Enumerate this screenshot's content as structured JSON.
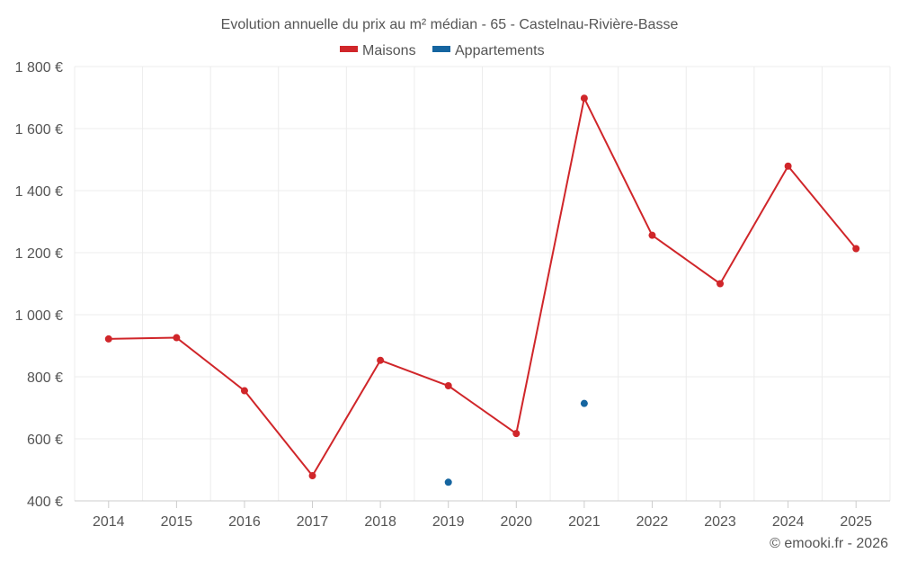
{
  "chart_data": {
    "type": "line",
    "title": "Evolution annuelle du prix au m² médian - 65 - Castelnau-Rivière-Basse",
    "categories": [
      "2014",
      "2015",
      "2016",
      "2017",
      "2018",
      "2019",
      "2020",
      "2021",
      "2022",
      "2023",
      "2024",
      "2025"
    ],
    "series": [
      {
        "name": "Maisons",
        "color": "#d0262a",
        "values": [
          922,
          926,
          755,
          481,
          853,
          771,
          617,
          1698,
          1256,
          1100,
          1479,
          1213
        ]
      },
      {
        "name": "Appartements",
        "color": "#1565a0",
        "values": [
          null,
          null,
          null,
          null,
          null,
          460,
          null,
          714,
          null,
          null,
          null,
          null
        ]
      }
    ],
    "yticks": [
      400,
      600,
      800,
      1000,
      1200,
      1400,
      1600,
      1800
    ],
    "ytick_labels": [
      "400 €",
      "600 €",
      "800 €",
      "1 000 €",
      "1 200 €",
      "1 400 €",
      "1 600 €",
      "1 800 €"
    ],
    "ylim": [
      400,
      1800
    ],
    "xlabel": "",
    "ylabel": "",
    "grid": true,
    "legend_position": "top-center"
  },
  "credit": "© emooki.fr - 2026"
}
